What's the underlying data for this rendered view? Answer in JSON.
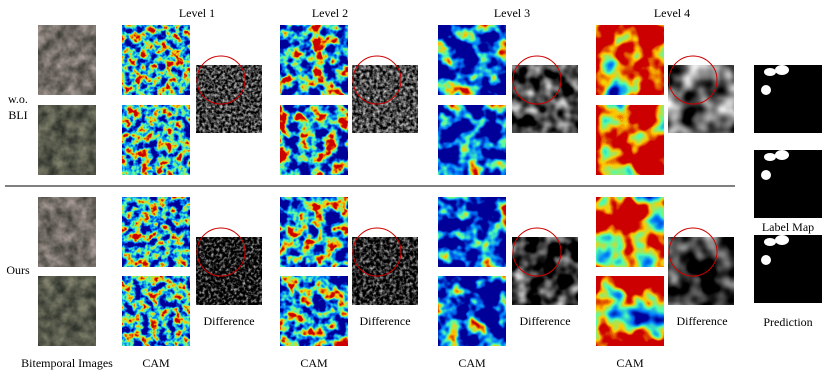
{
  "header": {
    "levels": [
      "Level 1",
      "Level 2",
      "Level 3",
      "Level 4"
    ]
  },
  "rows": [
    {
      "label": [
        "w.o.",
        "BLI"
      ]
    },
    {
      "label": [
        "Ours"
      ]
    }
  ],
  "captions": {
    "bitemporal": "Bitemporal Images",
    "cam": [
      "CAM",
      "CAM",
      "CAM",
      "CAM"
    ],
    "difference": [
      "Difference",
      "Difference",
      "Difference",
      "Difference"
    ],
    "label_map": "Label Map",
    "prediction": "Prediction"
  }
}
